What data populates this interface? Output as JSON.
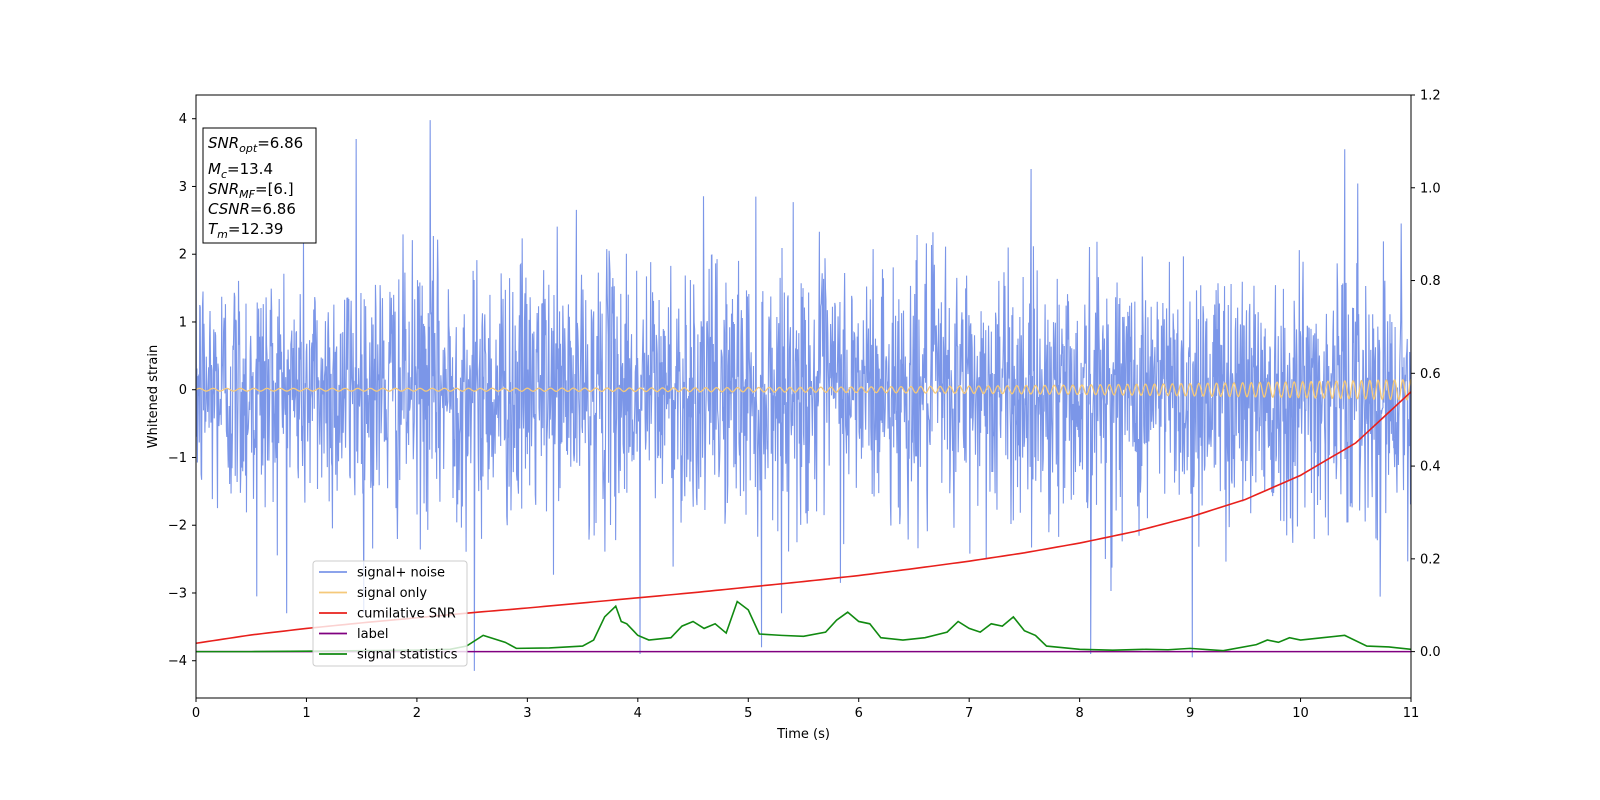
{
  "chart_data": {
    "type": "line",
    "xlabel": "Time (s)",
    "ylabel": "Whitened strain",
    "xlim": [
      0,
      11
    ],
    "ylim": [
      -4.55,
      4.35
    ],
    "y2lim": [
      -0.1,
      1.2
    ],
    "x_ticks": [
      0,
      1,
      2,
      3,
      4,
      5,
      6,
      7,
      8,
      9,
      10,
      11
    ],
    "x_tick_labels": [
      "0",
      "1",
      "2",
      "3",
      "4",
      "5",
      "6",
      "7",
      "8",
      "9",
      "10",
      "11"
    ],
    "y_ticks": [
      -4,
      -3,
      -2,
      -1,
      0,
      1,
      2,
      3,
      4
    ],
    "y_tick_labels": [
      "−4",
      "−3",
      "−2",
      "−1",
      "0",
      "1",
      "2",
      "3",
      "4"
    ],
    "y2_ticks": [
      0.0,
      0.2,
      0.4,
      0.6,
      0.8,
      1.0,
      1.2
    ],
    "y2_tick_labels": [
      "0.0",
      "0.2",
      "0.4",
      "0.6",
      "0.8",
      "1.0",
      "1.2"
    ],
    "grid": false,
    "legend_position": "lower-left",
    "annotation": {
      "lines": [
        {
          "italic": "SNR",
          "sub": "opt",
          "rest": "=6.86"
        },
        {
          "italic": "M",
          "sub": "c",
          "rest": "=13.4"
        },
        {
          "italic": "SNR",
          "sub": "MF",
          "rest": "=[6.]"
        },
        {
          "italic": "CSNR",
          "sub": "",
          "rest": "=6.86"
        },
        {
          "italic": "T",
          "sub": "m",
          "rest": "=12.39"
        }
      ]
    },
    "series": [
      {
        "name": "signal+ noise",
        "color": "#7b96e8",
        "axis": "left",
        "kind": "noise",
        "envelope_typical": 1.7,
        "notable_peaks": [
          {
            "x": 2.12,
            "y": 3.98
          },
          {
            "x": 1.45,
            "y": 3.7
          },
          {
            "x": 10.4,
            "y": 3.55
          },
          {
            "x": 0.55,
            "y": -3.05
          },
          {
            "x": 2.52,
            "y": -4.15
          },
          {
            "x": 4.02,
            "y": -3.9
          },
          {
            "x": 5.12,
            "y": -3.8
          },
          {
            "x": 8.1,
            "y": -3.9
          },
          {
            "x": 9.02,
            "y": -3.95
          }
        ]
      },
      {
        "name": "signal only",
        "color": "#f5c97a",
        "axis": "left",
        "kind": "chirp",
        "amplitude_start": 0.02,
        "amplitude_end": 0.15
      },
      {
        "name": "cumilative SNR",
        "color": "#e8201c",
        "axis": "right",
        "x": [
          0,
          0.5,
          1,
          1.5,
          2,
          2.5,
          3,
          3.5,
          4,
          4.5,
          5,
          5.5,
          6,
          6.5,
          7,
          7.5,
          8,
          8.5,
          9,
          9.5,
          10,
          10.5,
          11
        ],
        "y": [
          0.018,
          0.036,
          0.05,
          0.062,
          0.073,
          0.084,
          0.094,
          0.105,
          0.116,
          0.127,
          0.139,
          0.151,
          0.164,
          0.179,
          0.195,
          0.213,
          0.234,
          0.259,
          0.29,
          0.328,
          0.38,
          0.45,
          0.56
        ]
      },
      {
        "name": "label",
        "color": "#800080",
        "axis": "right",
        "x": [
          0,
          11
        ],
        "y": [
          0.0,
          0.0
        ]
      },
      {
        "name": "signal statistics",
        "color": "#118a11",
        "axis": "right",
        "x": [
          0,
          0.5,
          1,
          1.5,
          2,
          2.3,
          2.45,
          2.6,
          2.8,
          2.9,
          3.2,
          3.5,
          3.6,
          3.7,
          3.8,
          3.85,
          3.9,
          4.0,
          4.1,
          4.3,
          4.4,
          4.5,
          4.6,
          4.7,
          4.8,
          4.9,
          5.0,
          5.1,
          5.3,
          5.5,
          5.7,
          5.8,
          5.9,
          6.0,
          6.1,
          6.2,
          6.4,
          6.6,
          6.8,
          6.9,
          7.0,
          7.1,
          7.2,
          7.3,
          7.4,
          7.5,
          7.6,
          7.7,
          8.0,
          8.3,
          8.6,
          8.8,
          9.0,
          9.3,
          9.6,
          9.7,
          9.8,
          9.9,
          10.0,
          10.2,
          10.4,
          10.6,
          10.8,
          11.0
        ],
        "y": [
          0.0,
          0.0,
          0.001,
          0.002,
          0.003,
          0.005,
          0.012,
          0.035,
          0.02,
          0.007,
          0.008,
          0.012,
          0.025,
          0.075,
          0.098,
          0.065,
          0.06,
          0.035,
          0.025,
          0.03,
          0.055,
          0.065,
          0.05,
          0.06,
          0.04,
          0.108,
          0.09,
          0.038,
          0.035,
          0.033,
          0.042,
          0.068,
          0.085,
          0.065,
          0.06,
          0.03,
          0.025,
          0.03,
          0.042,
          0.065,
          0.05,
          0.042,
          0.06,
          0.055,
          0.075,
          0.045,
          0.035,
          0.012,
          0.005,
          0.003,
          0.005,
          0.004,
          0.007,
          0.002,
          0.015,
          0.025,
          0.02,
          0.03,
          0.025,
          0.03,
          0.035,
          0.012,
          0.01,
          0.005
        ]
      }
    ]
  }
}
